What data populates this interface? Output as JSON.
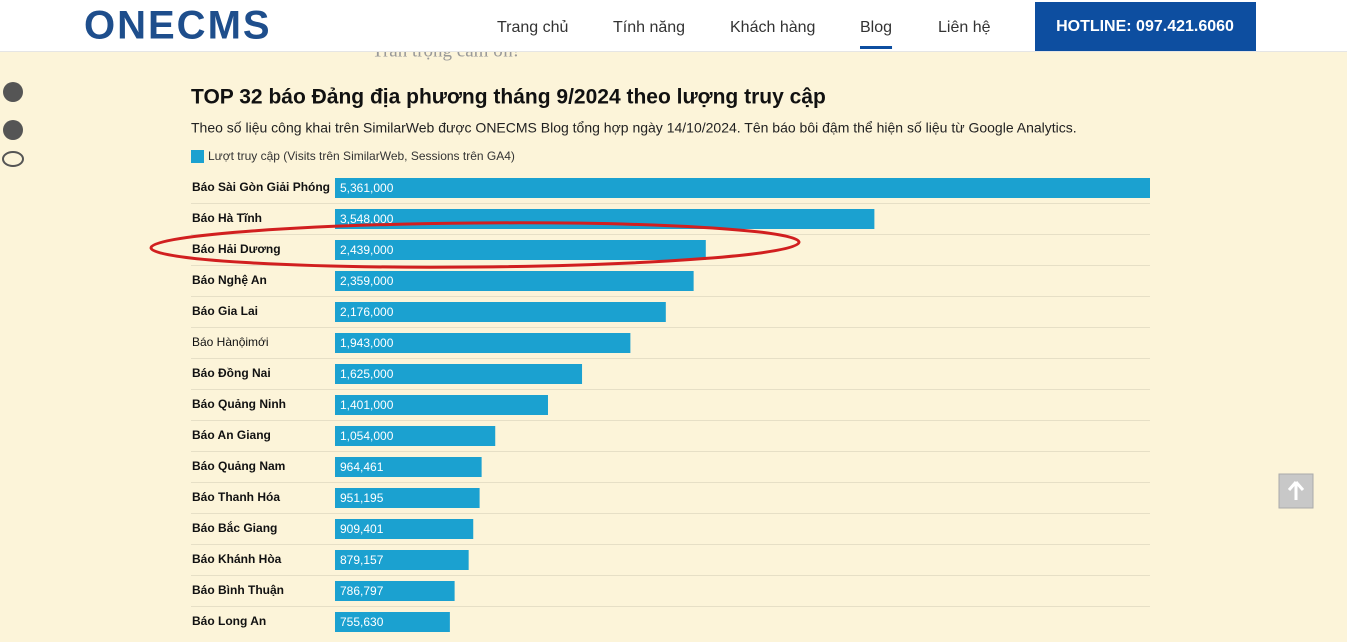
{
  "header": {
    "logo": "ONECMS",
    "nav": [
      "Trang chủ",
      "Tính năng",
      "Khách hàng",
      "Blog",
      "Liên hệ"
    ],
    "active": 3,
    "hotline": "HOTLINE: 097.421.6060"
  },
  "background_text": "Trân trọng cảm ơn!",
  "chart_data": {
    "type": "bar",
    "orientation": "horizontal",
    "title": "TOP 32 báo Đảng địa phương tháng 9/2024 theo lượng truy cập",
    "subtitle": "Theo số liệu công khai trên SimilarWeb được ONECMS Blog tổng hợp ngày 14/10/2024. Tên báo bôi đậm thể hiện số liệu từ Google Analytics.",
    "categories": [
      "Báo Sài Gòn Giải Phóng",
      "Báo Hà Tĩnh",
      "Báo Hải Dương",
      "Báo Nghệ An",
      "Báo Gia Lai",
      "Báo Hànộimới",
      "Báo Đồng Nai",
      "Báo Quảng Ninh",
      "Báo An Giang",
      "Báo Quảng Nam",
      "Báo Thanh Hóa",
      "Báo Bắc Giang",
      "Báo Khánh Hòa",
      "Báo Bình Thuận",
      "Báo Long An"
    ],
    "bold": [
      true,
      true,
      true,
      true,
      true,
      false,
      true,
      true,
      true,
      true,
      true,
      true,
      true,
      true,
      true
    ],
    "series": [
      {
        "name": "Lượt truy cập (Visits trên SimilarWeb, Sessions trên GA4)",
        "color": "#1ba1d0",
        "values": [
          5361000,
          3548000,
          2439000,
          2359000,
          2176000,
          1943000,
          1625000,
          1401000,
          1054000,
          964461,
          951195,
          909401,
          879157,
          786797,
          755630
        ],
        "value_labels": [
          "5,361,000",
          "3,548,000",
          "2,439,000",
          "2,359,000",
          "2,176,000",
          "1,943,000",
          "1,625,000",
          "1,401,000",
          "1,054,000",
          "964,461",
          "951,195",
          "909,401",
          "879,157",
          "786,797",
          "755,630"
        ]
      }
    ],
    "xlim": [
      0,
      5361000
    ],
    "grid": true
  }
}
